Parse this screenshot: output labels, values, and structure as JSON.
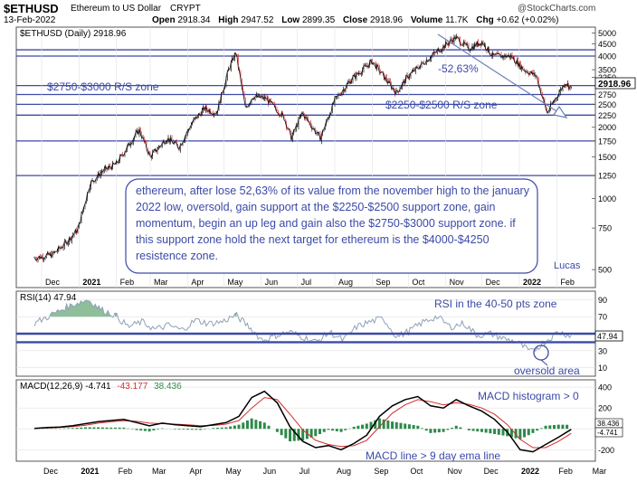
{
  "header": {
    "symbol": "$ETHUSD",
    "name": "Ethereum to US Dollar",
    "exchange": "CRYPT",
    "date": "13-Feb-2022",
    "open_label": "Open",
    "open": "2918.34",
    "high_label": "High",
    "high": "2947.52",
    "low_label": "Low",
    "low": "2899.35",
    "close_label": "Close",
    "close": "2918.96",
    "volume_label": "Volume",
    "volume": "11.7K",
    "chg_label": "Chg",
    "chg": "+0.62 (+0.02%)",
    "watermark": "@StockCharts.com"
  },
  "chart_data": [
    {
      "type": "candlestick",
      "legend": "$ETHUSD (Daily) 2918.96",
      "last_value": "2918.96",
      "scale": "log",
      "ylim": [
        420,
        5300
      ],
      "y_ticks": [
        5000,
        4500,
        4000,
        3500,
        3250,
        3000,
        2750,
        2500,
        2250,
        2000,
        1750,
        1500,
        1250,
        1000,
        750,
        500
      ],
      "horizontal_lines": [
        4250,
        4000,
        3000,
        2750,
        2500,
        2250,
        1750,
        1250
      ],
      "x_labels": [
        "Dec",
        "2021",
        "Feb",
        "Mar",
        "Apr",
        "May",
        "Jun",
        "Jul",
        "Aug",
        "Sep",
        "Oct",
        "Nov",
        "Dec",
        "2022",
        "Feb"
      ],
      "price_path": [
        {
          "date": "2020-11-25",
          "value": 560
        },
        {
          "date": "2020-12-10",
          "value": 580
        },
        {
          "date": "2020-12-20",
          "value": 640
        },
        {
          "date": "2020-12-31",
          "value": 740
        },
        {
          "date": "2021-01-10",
          "value": 1150
        },
        {
          "date": "2021-01-20",
          "value": 1300
        },
        {
          "date": "2021-02-01",
          "value": 1400
        },
        {
          "date": "2021-02-15",
          "value": 1800
        },
        {
          "date": "2021-02-20",
          "value": 1950
        },
        {
          "date": "2021-03-01",
          "value": 1500
        },
        {
          "date": "2021-03-15",
          "value": 1800
        },
        {
          "date": "2021-03-25",
          "value": 1650
        },
        {
          "date": "2021-04-05",
          "value": 2100
        },
        {
          "date": "2021-04-15",
          "value": 2400
        },
        {
          "date": "2021-04-25",
          "value": 2300
        },
        {
          "date": "2021-05-05",
          "value": 3500
        },
        {
          "date": "2021-05-11",
          "value": 4150
        },
        {
          "date": "2021-05-19",
          "value": 2400
        },
        {
          "date": "2021-05-25",
          "value": 2700
        },
        {
          "date": "2021-06-05",
          "value": 2650
        },
        {
          "date": "2021-06-20",
          "value": 2200
        },
        {
          "date": "2021-06-26",
          "value": 1800
        },
        {
          "date": "2021-07-05",
          "value": 2300
        },
        {
          "date": "2021-07-20",
          "value": 1800
        },
        {
          "date": "2021-08-01",
          "value": 2600
        },
        {
          "date": "2021-08-15",
          "value": 3200
        },
        {
          "date": "2021-09-01",
          "value": 3800
        },
        {
          "date": "2021-09-21",
          "value": 2800
        },
        {
          "date": "2021-10-01",
          "value": 3300
        },
        {
          "date": "2021-10-20",
          "value": 4000
        },
        {
          "date": "2021-11-09",
          "value": 4800
        },
        {
          "date": "2021-11-20",
          "value": 4300
        },
        {
          "date": "2021-12-01",
          "value": 4600
        },
        {
          "date": "2021-12-10",
          "value": 4000
        },
        {
          "date": "2021-12-25",
          "value": 4000
        },
        {
          "date": "2022-01-05",
          "value": 3500
        },
        {
          "date": "2022-01-15",
          "value": 3300
        },
        {
          "date": "2022-01-24",
          "value": 2300
        },
        {
          "date": "2022-02-01",
          "value": 2700
        },
        {
          "date": "2022-02-08",
          "value": 3100
        },
        {
          "date": "2022-02-13",
          "value": 2918.96
        }
      ],
      "annotations": [
        {
          "text": "$2750-$3000 R/S zone"
        },
        {
          "text": "$2250-$2500 R/S zone"
        },
        {
          "text": "-52,63%"
        },
        {
          "text": "Lucas"
        }
      ],
      "comment": "ethereum, after lose 52,63% of its value from the november high to the january 2022 low, oversold, gain support at the $2250-$2500 support zone, gain momentum, begin an up leg and gain also the $2750-$3000 support zone. if this support zone hold the next target for ethereum is the $4000-$4250 resistence zone."
    },
    {
      "type": "line",
      "legend": "RSI(14) 47.94",
      "last_value": "47.94",
      "ylim": [
        0,
        100
      ],
      "y_ticks": [
        90,
        70,
        50,
        30,
        10
      ],
      "horizontal_lines": [
        50,
        40
      ],
      "annotations": [
        {
          "text": "RSI in the 40-50 pts zone"
        },
        {
          "text": "oversold area"
        }
      ],
      "series": [
        {
          "values": [
            62,
            70,
            78,
            85,
            90,
            78,
            72,
            58,
            64,
            55,
            60,
            54,
            66,
            62,
            64,
            72,
            58,
            42,
            48,
            52,
            46,
            40,
            52,
            42,
            58,
            64,
            68,
            46,
            54,
            64,
            70,
            58,
            62,
            48,
            50,
            44,
            40,
            28,
            40,
            52,
            47.94
          ]
        }
      ]
    },
    {
      "type": "line",
      "legend": [
        "MACD(12,26,9) -4.741",
        "-43.177",
        "38.436"
      ],
      "ylim": [
        -310,
        470
      ],
      "y_ticks": [
        400,
        200,
        0,
        -200
      ],
      "last_values": [
        "38.436",
        "-4.741"
      ],
      "annotations": [
        {
          "text": "MACD histogram > 0"
        },
        {
          "text": "MACD line > 9 day ema line"
        }
      ],
      "x_labels": [
        "Dec",
        "2021",
        "Feb",
        "Mar",
        "Apr",
        "May",
        "Jun",
        "Jul",
        "Aug",
        "Sep",
        "Oct",
        "Nov",
        "Dec",
        "2022",
        "Feb",
        "Mar"
      ],
      "series": [
        {
          "values": [
            5,
            12,
            18,
            30,
            50,
            70,
            80,
            90,
            60,
            30,
            55,
            40,
            30,
            20,
            40,
            60,
            120,
            300,
            360,
            250,
            20,
            -120,
            -180,
            -160,
            -200,
            -140,
            -60,
            120,
            220,
            280,
            310,
            220,
            200,
            280,
            220,
            170,
            90,
            -30,
            -200,
            -220,
            -150,
            -80,
            -4.741
          ]
        },
        {
          "values": [
            4,
            8,
            14,
            22,
            35,
            55,
            68,
            78,
            72,
            55,
            50,
            45,
            38,
            30,
            32,
            45,
            80,
            200,
            300,
            280,
            140,
            -10,
            -110,
            -150,
            -170,
            -160,
            -110,
            20,
            150,
            230,
            280,
            260,
            230,
            250,
            235,
            200,
            140,
            40,
            -100,
            -180,
            -180,
            -120,
            -43.177
          ]
        }
      ]
    }
  ]
}
